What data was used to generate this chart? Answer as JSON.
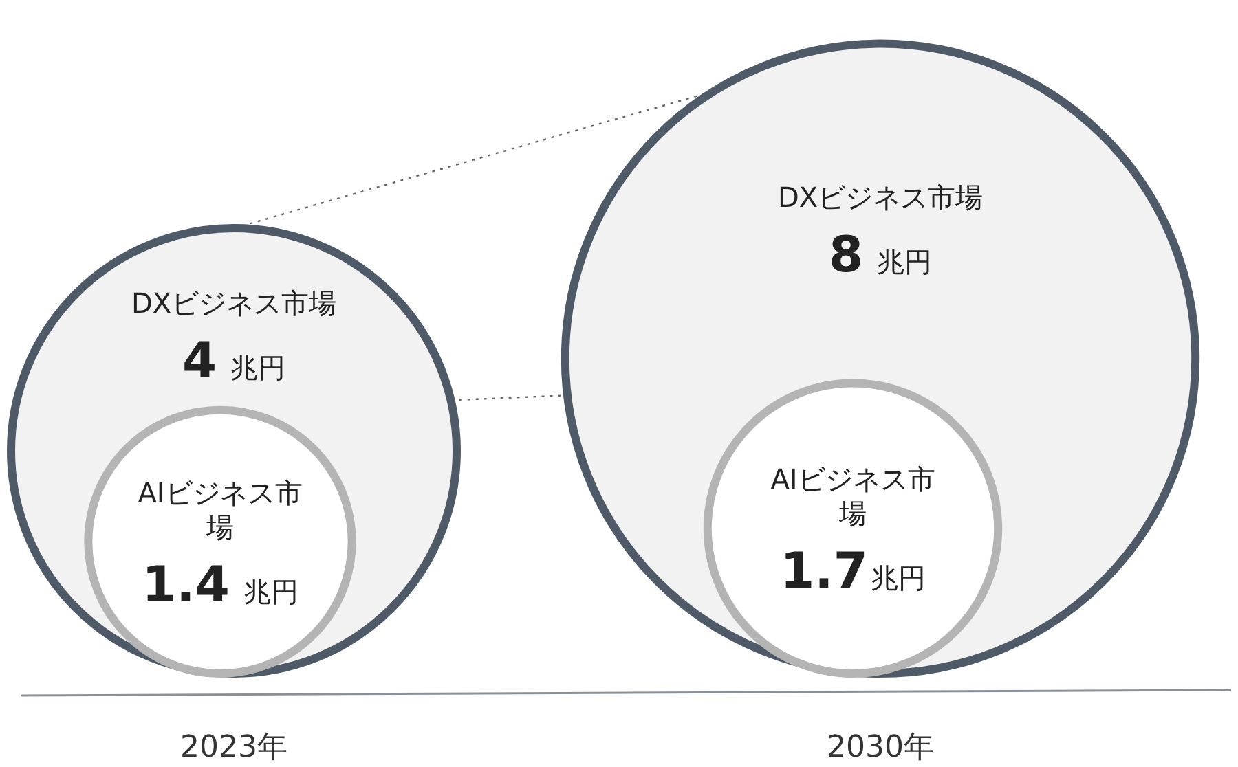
{
  "chart_data": {
    "type": "other",
    "categories": [
      "2023年",
      "2030年"
    ],
    "series": [
      {
        "name": "DXビジネス市場",
        "color": "#4f5a68",
        "values": [
          4,
          8
        ],
        "value_labels": [
          "4 兆円",
          "8 兆円"
        ]
      },
      {
        "name": "AIビジネス市場",
        "color": "#b4b4b4",
        "values": [
          1.4,
          1.7
        ],
        "value_labels": [
          "1.4 兆円",
          "1.7兆円"
        ]
      }
    ]
  }
}
